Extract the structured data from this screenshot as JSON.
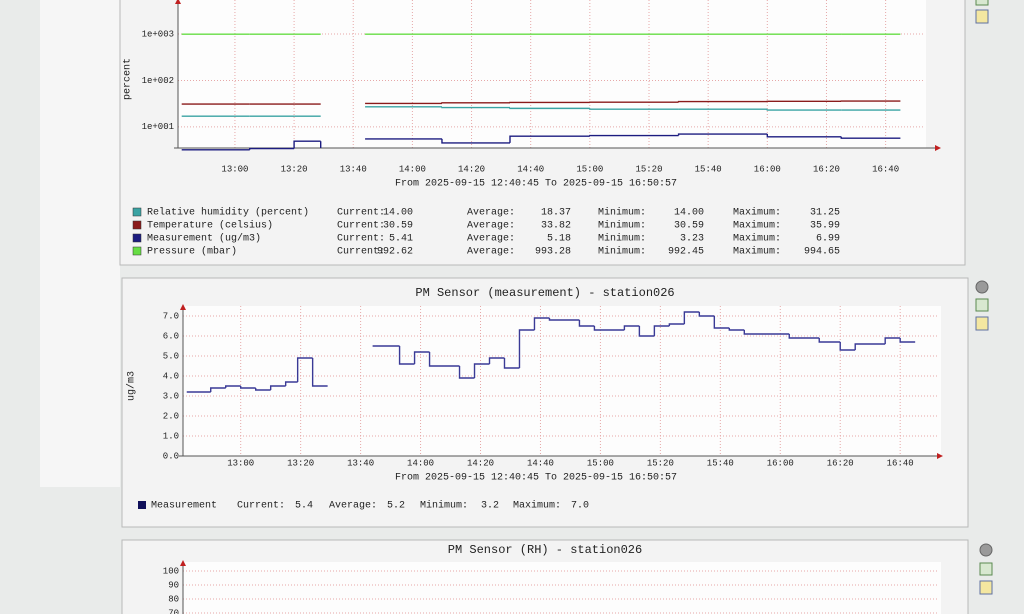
{
  "chart_data": [
    {
      "type": "line",
      "y_label": "percent",
      "log_scale": true,
      "grid": true,
      "ylim": [
        3.5,
        3300
      ],
      "yticks": [
        {
          "value": 10,
          "label": "1e+001"
        },
        {
          "value": 100,
          "label": "1e+002"
        },
        {
          "value": 1000,
          "label": "1e+003"
        }
      ],
      "xlim": [
        760.75,
        1010.95
      ],
      "xticks": [
        {
          "value": 780,
          "label": "13:00"
        },
        {
          "value": 800,
          "label": "13:20"
        },
        {
          "value": 820,
          "label": "13:40"
        },
        {
          "value": 840,
          "label": "14:00"
        },
        {
          "value": 860,
          "label": "14:20"
        },
        {
          "value": 880,
          "label": "14:40"
        },
        {
          "value": 900,
          "label": "15:00"
        },
        {
          "value": 920,
          "label": "15:20"
        },
        {
          "value": 940,
          "label": "15:40"
        },
        {
          "value": 960,
          "label": "16:00"
        },
        {
          "value": 980,
          "label": "16:20"
        },
        {
          "value": 1000,
          "label": "16:40"
        }
      ],
      "range_text": "From 2025-09-15 12:40:45 To 2025-09-15 16:50:57",
      "stat_labels": [
        "Current:",
        "Average:",
        "Minimum:",
        "Maximum:"
      ],
      "x": [
        762,
        785,
        800,
        809,
        816,
        824,
        850,
        873,
        900,
        930,
        960,
        985,
        1005
      ],
      "series": [
        {
          "name": "Relative humidity (percent)",
          "color": "#3aa3a3",
          "values": [
            17,
            17,
            17,
            17,
            null,
            27,
            26,
            25,
            24,
            24,
            23,
            23,
            23
          ],
          "stats": [
            "14.00",
            "18.37",
            "14.00",
            "31.25"
          ]
        },
        {
          "name": "Temperature (celsius)",
          "color": "#8a1a1a",
          "values": [
            31,
            31,
            31,
            31,
            null,
            32,
            33,
            33.5,
            34,
            35,
            35.5,
            36,
            36
          ],
          "stats": [
            "30.59",
            "33.82",
            "30.59",
            "35.99"
          ]
        },
        {
          "name": "Measurement (ug/m3)",
          "color": "#1c1c80",
          "values": [
            3.2,
            3.4,
            4.9,
            3.5,
            null,
            5.5,
            4.5,
            6.3,
            6.5,
            7.0,
            6.1,
            5.7,
            5.7
          ],
          "stats": [
            "5.41",
            "5.18",
            "3.23",
            "6.99"
          ]
        },
        {
          "name": "Pressure (mbar)",
          "color": "#66dd44",
          "values": [
            993,
            993,
            993,
            993,
            null,
            992.5,
            993,
            993.2,
            993.6,
            994,
            994.3,
            994.6,
            994.65
          ],
          "stats": [
            "992.62",
            "993.28",
            "992.45",
            "994.65"
          ]
        }
      ]
    },
    {
      "type": "line",
      "title": "PM Sensor (measurement) - station026",
      "y_label": "ug/m3",
      "log_scale": false,
      "grid": true,
      "ylim": [
        0,
        7
      ],
      "yticks": [
        {
          "value": 0,
          "label": "0.0"
        },
        {
          "value": 1,
          "label": "1.0"
        },
        {
          "value": 2,
          "label": "2.0"
        },
        {
          "value": 3,
          "label": "3.0"
        },
        {
          "value": 4,
          "label": "4.0"
        },
        {
          "value": 5,
          "label": "5.0"
        },
        {
          "value": 6,
          "label": "6.0"
        },
        {
          "value": 7,
          "label": "7.0"
        }
      ],
      "xlim": [
        760.75,
        1010.95
      ],
      "xticks": [
        {
          "value": 780,
          "label": "13:00"
        },
        {
          "value": 800,
          "label": "13:20"
        },
        {
          "value": 820,
          "label": "13:40"
        },
        {
          "value": 840,
          "label": "14:00"
        },
        {
          "value": 860,
          "label": "14:20"
        },
        {
          "value": 880,
          "label": "14:40"
        },
        {
          "value": 900,
          "label": "15:00"
        },
        {
          "value": 920,
          "label": "15:20"
        },
        {
          "value": 940,
          "label": "15:40"
        },
        {
          "value": 960,
          "label": "16:00"
        },
        {
          "value": 980,
          "label": "16:20"
        },
        {
          "value": 1000,
          "label": "16:40"
        }
      ],
      "range_text": "From 2025-09-15 12:40:45 To 2025-09-15 16:50:57",
      "stat_labels": [
        "Current:",
        "Average:",
        "Minimum:",
        "Maximum:"
      ],
      "x": [
        762,
        770,
        775,
        780,
        785,
        790,
        795,
        799,
        804,
        809,
        816,
        824,
        833,
        838,
        843,
        853,
        858,
        863,
        868,
        873,
        878,
        883,
        893,
        898,
        908,
        913,
        918,
        923,
        928,
        933,
        938,
        943,
        948,
        963,
        973,
        980,
        985,
        995,
        1000,
        1005
      ],
      "series": [
        {
          "name": "Measurement",
          "color": "#3a3a96",
          "values": [
            3.2,
            3.4,
            3.5,
            3.4,
            3.3,
            3.5,
            3.7,
            4.9,
            3.5,
            3.5,
            null,
            5.5,
            4.6,
            5.2,
            4.5,
            3.9,
            4.6,
            4.9,
            4.4,
            6.3,
            6.9,
            6.8,
            6.5,
            6.3,
            6.5,
            6.0,
            6.5,
            6.6,
            7.2,
            7.0,
            6.4,
            6.3,
            6.1,
            5.9,
            5.7,
            5.3,
            5.6,
            5.9,
            5.7,
            5.7
          ],
          "stats": [
            "5.4",
            "5.2",
            "3.2",
            "7.0"
          ]
        }
      ]
    },
    {
      "type": "line",
      "title": "PM Sensor (RH) - station026",
      "log_scale": false,
      "grid": true,
      "ylim": [
        0,
        100
      ],
      "yticks": [
        70,
        80,
        90,
        100
      ]
    }
  ]
}
